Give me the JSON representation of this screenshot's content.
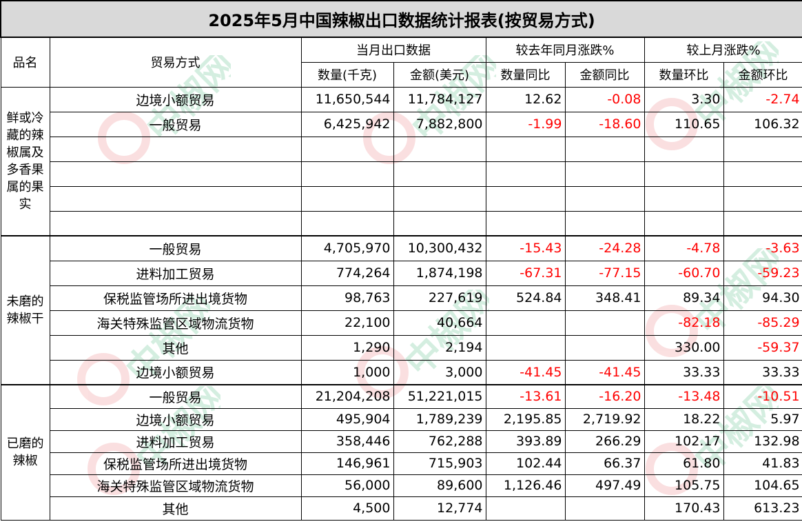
{
  "title": "2025年5月中国辣椒出口数据统计报表(按贸易方式)",
  "watermark": {
    "text": "中椒网",
    "color": "#19a35a"
  },
  "headers": {
    "product": "品名",
    "trade_mode": "贸易方式",
    "current_month": "当月出口数据",
    "yoy": "较去年同月涨跌%",
    "mom": "较上月涨跌%",
    "qty": "数量(千克)",
    "amount": "金额(美元)",
    "qty_yoy": "数量同比",
    "amt_yoy": "金额同比",
    "qty_mom": "数量环比",
    "amt_mom": "金额环比"
  },
  "groups": [
    {
      "name": "鲜或冷藏的辣椒属及多香果属的果实",
      "rows": [
        {
          "mode": "边境小额贸易",
          "qty": "11,650,544",
          "amount": "11,784,127",
          "qty_yoy": "12.62",
          "amt_yoy": "-0.08",
          "qty_mom": "3.30",
          "amt_mom": "-2.74"
        },
        {
          "mode": "一般贸易",
          "qty": "6,425,942",
          "amount": "7,882,800",
          "qty_yoy": "-1.99",
          "amt_yoy": "-18.60",
          "qty_mom": "110.65",
          "amt_mom": "106.32"
        },
        {
          "mode": "",
          "qty": "",
          "amount": "",
          "qty_yoy": "",
          "amt_yoy": "",
          "qty_mom": "",
          "amt_mom": ""
        },
        {
          "mode": "",
          "qty": "",
          "amount": "",
          "qty_yoy": "",
          "amt_yoy": "",
          "qty_mom": "",
          "amt_mom": ""
        },
        {
          "mode": "",
          "qty": "",
          "amount": "",
          "qty_yoy": "",
          "amt_yoy": "",
          "qty_mom": "",
          "amt_mom": ""
        },
        {
          "mode": "",
          "qty": "",
          "amount": "",
          "qty_yoy": "",
          "amt_yoy": "",
          "qty_mom": "",
          "amt_mom": ""
        }
      ]
    },
    {
      "name": "未磨的辣椒干",
      "rows": [
        {
          "mode": "一般贸易",
          "qty": "4,705,970",
          "amount": "10,300,432",
          "qty_yoy": "-15.43",
          "amt_yoy": "-24.28",
          "qty_mom": "-4.78",
          "amt_mom": "-3.63"
        },
        {
          "mode": "进料加工贸易",
          "qty": "774,264",
          "amount": "1,874,198",
          "qty_yoy": "-67.31",
          "amt_yoy": "-77.15",
          "qty_mom": "-60.70",
          "amt_mom": "-59.23"
        },
        {
          "mode": "保税监管场所进出境货物",
          "qty": "98,763",
          "amount": "227,619",
          "qty_yoy": "524.84",
          "amt_yoy": "348.41",
          "qty_mom": "89.34",
          "amt_mom": "94.30"
        },
        {
          "mode": "海关特殊监管区域物流货物",
          "qty": "22,100",
          "amount": "40,664",
          "qty_yoy": "",
          "amt_yoy": "",
          "qty_mom": "-82.18",
          "amt_mom": "-85.29"
        },
        {
          "mode": "其他",
          "qty": "1,290",
          "amount": "2,194",
          "qty_yoy": "",
          "amt_yoy": "",
          "qty_mom": "330.00",
          "amt_mom": "-59.37"
        },
        {
          "mode": "边境小额贸易",
          "qty": "1,000",
          "amount": "3,000",
          "qty_yoy": "-41.45",
          "amt_yoy": "-41.45",
          "qty_mom": "33.33",
          "amt_mom": "33.33"
        }
      ]
    },
    {
      "name": "已磨的辣椒",
      "rows": [
        {
          "mode": "一般贸易",
          "qty": "21,204,208",
          "amount": "51,221,015",
          "qty_yoy": "-13.61",
          "amt_yoy": "-16.20",
          "qty_mom": "-13.48",
          "amt_mom": "-10.51"
        },
        {
          "mode": "边境小额贸易",
          "qty": "495,904",
          "amount": "1,789,239",
          "qty_yoy": "2,195.85",
          "amt_yoy": "2,719.92",
          "qty_mom": "18.22",
          "amt_mom": "5.97"
        },
        {
          "mode": "进料加工贸易",
          "qty": "358,446",
          "amount": "762,288",
          "qty_yoy": "393.89",
          "amt_yoy": "266.29",
          "qty_mom": "102.17",
          "amt_mom": "132.98"
        },
        {
          "mode": "保税监管场所进出境货物",
          "qty": "146,961",
          "amount": "715,903",
          "qty_yoy": "102.44",
          "amt_yoy": "66.37",
          "qty_mom": "61.80",
          "amt_mom": "41.83"
        },
        {
          "mode": "海关特殊监管区域物流货物",
          "qty": "56,000",
          "amount": "89,600",
          "qty_yoy": "1,126.46",
          "amt_yoy": "497.49",
          "qty_mom": "105.75",
          "amt_mom": "104.65"
        },
        {
          "mode": "其他",
          "qty": "4,500",
          "amount": "12,774",
          "qty_yoy": "",
          "amt_yoy": "",
          "qty_mom": "170.43",
          "amt_mom": "613.23"
        }
      ]
    }
  ]
}
